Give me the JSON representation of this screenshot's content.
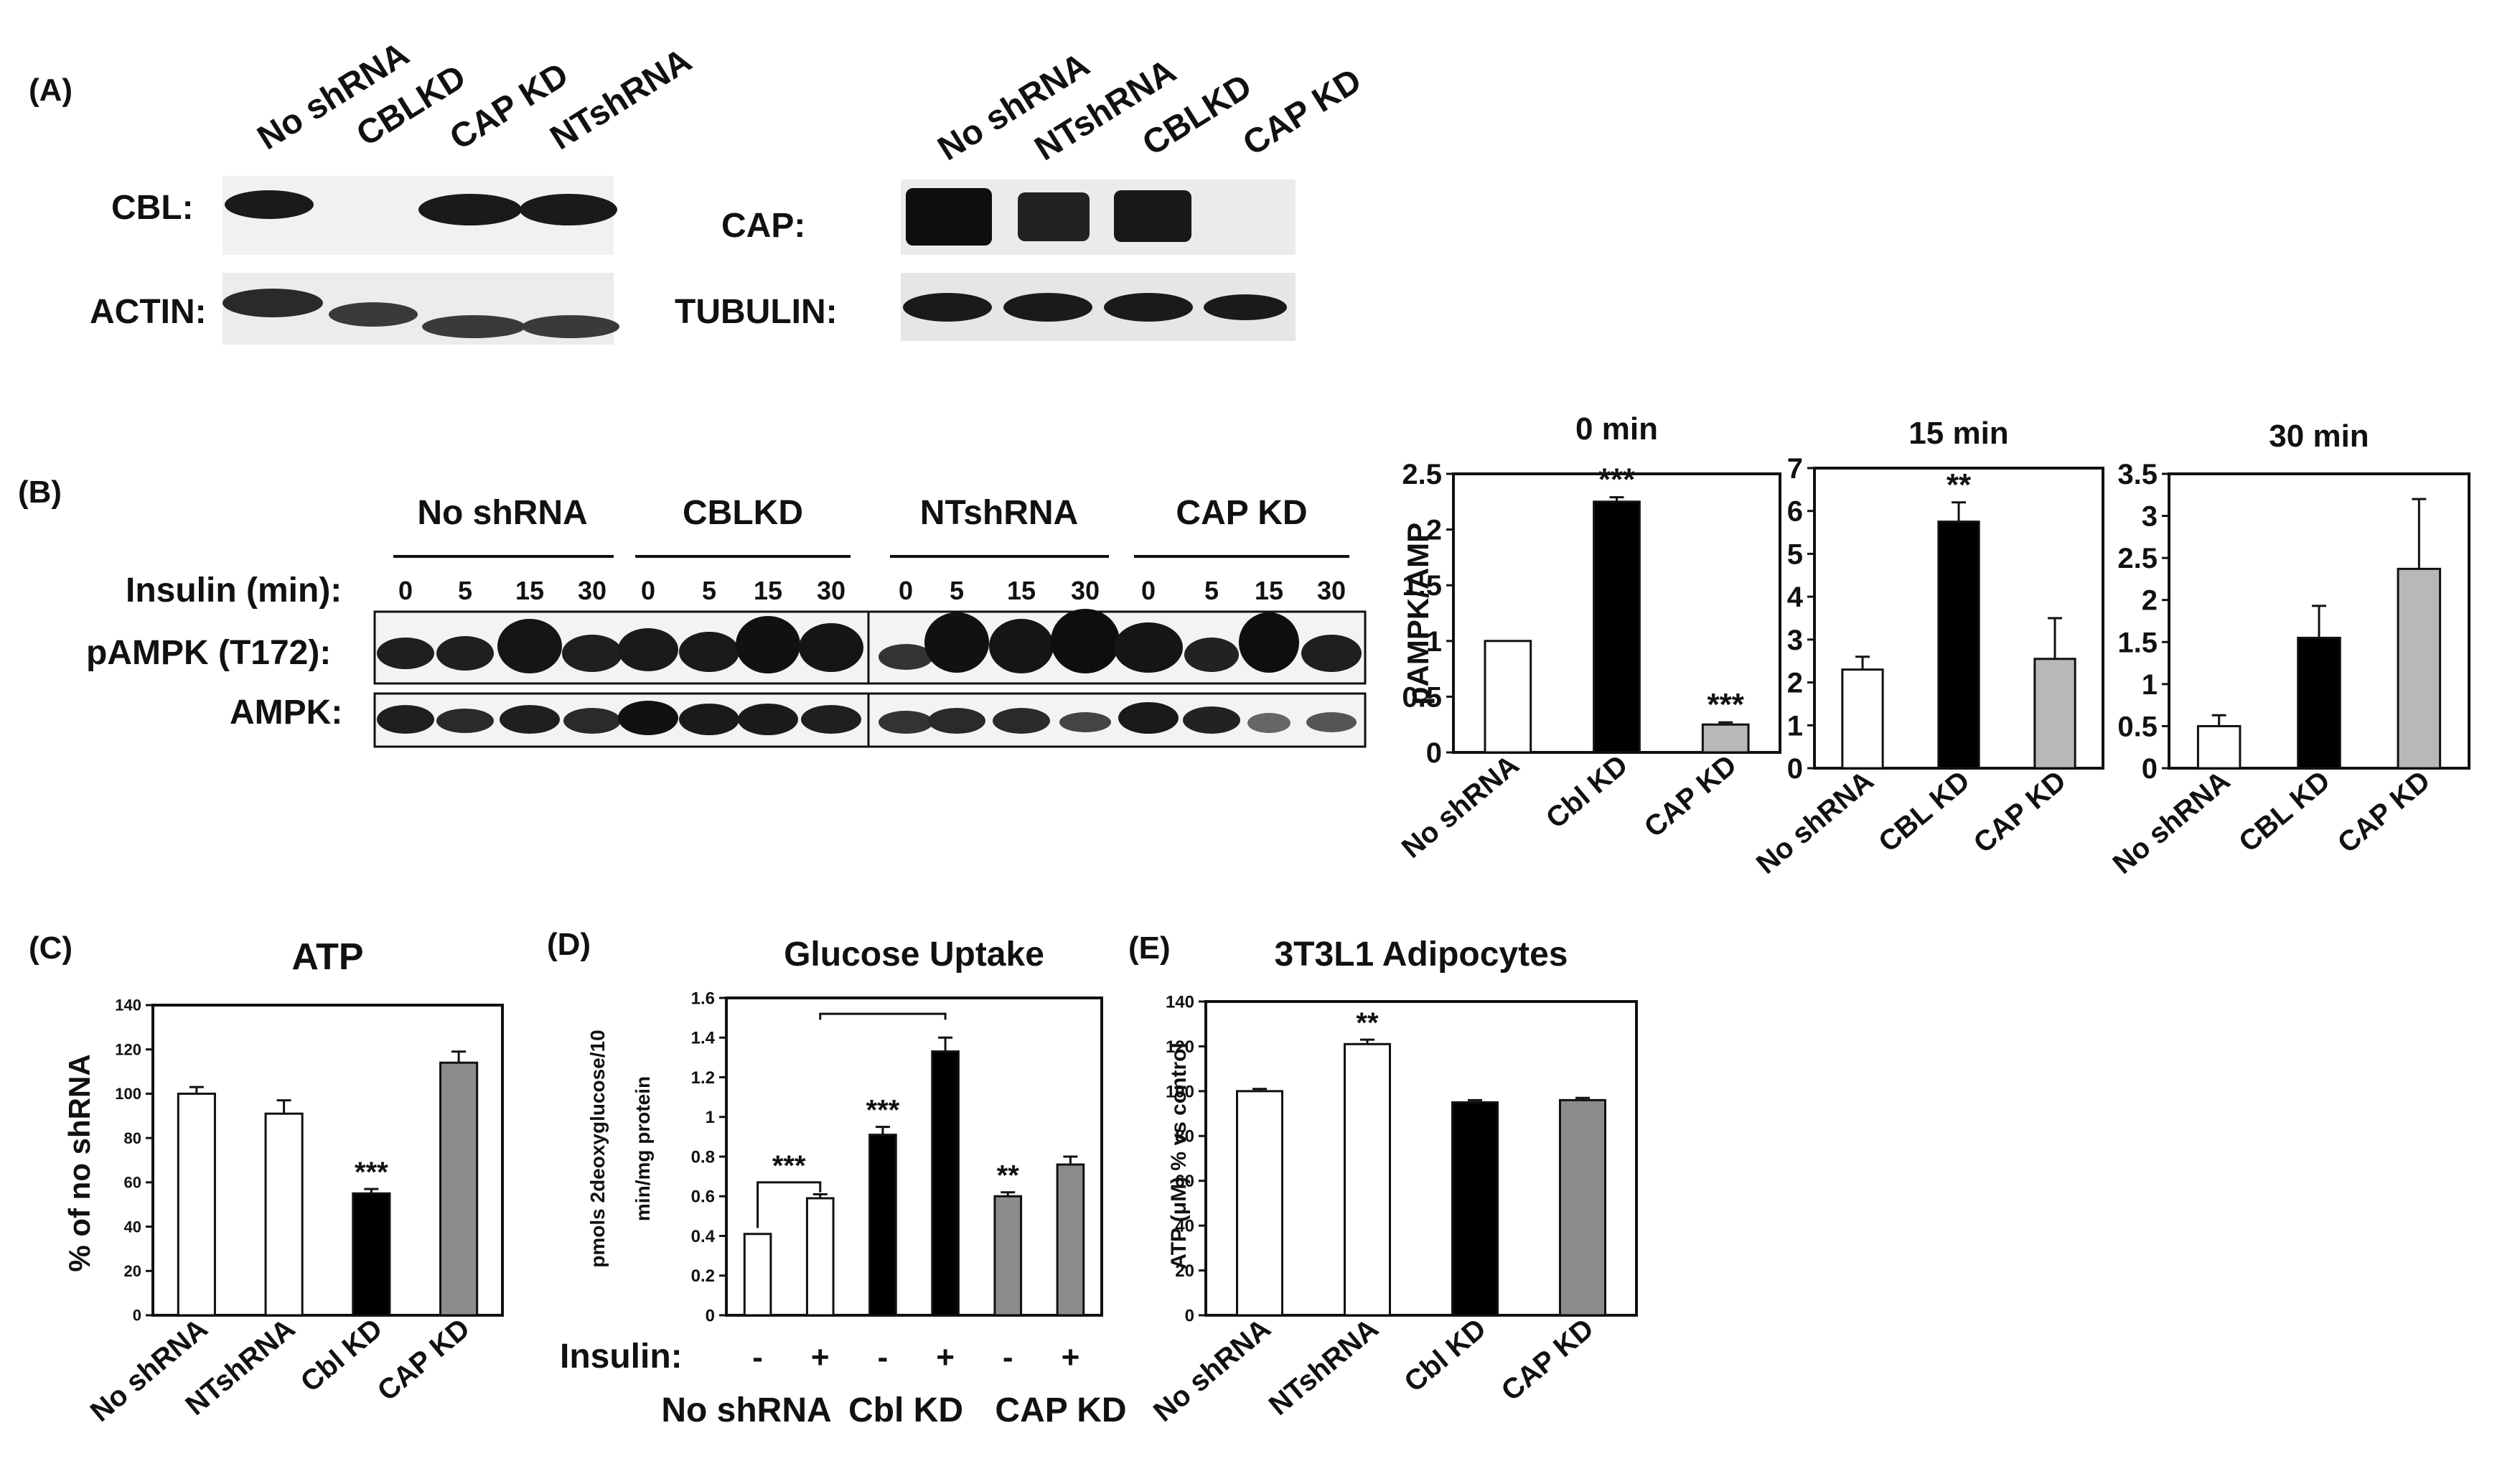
{
  "panelA": {
    "label": "(A)",
    "left": {
      "lanes": [
        "No shRNA",
        "CBLKD",
        "CAP KD",
        "NTshRNA"
      ],
      "row_labels": [
        "CBL:",
        "ACTIN:"
      ]
    },
    "right": {
      "lanes": [
        "No shRNA",
        "NTshRNA",
        "CBLKD",
        "CAP KD"
      ],
      "row_labels": [
        "CAP:",
        "TUBULIN:"
      ]
    }
  },
  "panelB": {
    "label": "(B)",
    "groups": [
      "No shRNA",
      "CBLKD",
      "NTshRNA",
      "CAP KD"
    ],
    "insulin_label": "Insulin (min):",
    "times": [
      "0",
      "5",
      "15",
      "30"
    ],
    "row_labels": [
      "pAMPK (T172):",
      "AMPK:"
    ]
  },
  "panelC_label": "(C)",
  "panelD_label": "(D)",
  "panelD_extra": {
    "insulin_label": "Insulin:",
    "insulin_signs": [
      "-",
      "+",
      "-",
      "+",
      "-",
      "+"
    ],
    "groups": [
      "No shRNA",
      "Cbl KD",
      "CAP KD"
    ]
  },
  "panelE_label": "(E)",
  "chart_data": [
    {
      "type": "bar",
      "title": "0 min",
      "ylabel": "pAMPK/AMP",
      "categories": [
        "No shRNA",
        "Cbl KD",
        "CAP KD"
      ],
      "values": [
        1.0,
        2.25,
        0.25
      ],
      "errors": [
        0,
        0.04,
        0.02
      ],
      "ylim": [
        0,
        2.5
      ],
      "yticks": [
        "0",
        "0.5",
        "1",
        "1.5",
        "2",
        "2.5"
      ],
      "annotations": [
        "",
        "***",
        "***"
      ],
      "colors": [
        "#ffffff",
        "#000000",
        "#b8b8b8"
      ]
    },
    {
      "type": "bar",
      "title": "15 min",
      "ylabel": "",
      "categories": [
        "No shRNA",
        "CBL KD",
        "CAP KD"
      ],
      "values": [
        2.3,
        5.75,
        2.55
      ],
      "errors": [
        0.3,
        0.45,
        0.95
      ],
      "ylim": [
        0,
        7
      ],
      "yticks": [
        "0",
        "1",
        "2",
        "3",
        "4",
        "5",
        "6",
        "7"
      ],
      "annotations": [
        "",
        "**",
        ""
      ],
      "colors": [
        "#ffffff",
        "#000000",
        "#b8b8b8"
      ]
    },
    {
      "type": "bar",
      "title": "30 min",
      "ylabel": "",
      "categories": [
        "No shRNA",
        "CBL KD",
        "CAP KD"
      ],
      "values": [
        0.5,
        1.55,
        2.37
      ],
      "errors": [
        0.13,
        0.38,
        0.83
      ],
      "ylim": [
        0,
        3.5
      ],
      "yticks": [
        "0",
        "0.5",
        "1",
        "1.5",
        "2",
        "2.5",
        "3",
        "3.5"
      ],
      "annotations": [
        "",
        "",
        ""
      ],
      "colors": [
        "#ffffff",
        "#000000",
        "#b8b8b8"
      ]
    },
    {
      "type": "bar",
      "title": "ATP",
      "ylabel": "% of no shRNA",
      "categories": [
        "No shRNA",
        "NTshRNA",
        "Cbl KD",
        "CAP KD"
      ],
      "values": [
        100,
        91,
        55,
        114
      ],
      "errors": [
        3,
        6,
        2,
        5
      ],
      "ylim": [
        0,
        140
      ],
      "yticks": [
        "0",
        "20",
        "40",
        "60",
        "80",
        "100",
        "120",
        "140"
      ],
      "annotations": [
        "",
        "",
        "***",
        ""
      ],
      "colors": [
        "#ffffff",
        "#ffffff",
        "#000000",
        "#8c8c8c"
      ]
    },
    {
      "type": "bar",
      "title": "Glucose Uptake",
      "ylabel_lines": [
        "pmols 2deoxyglucose/10",
        "min/mg protein"
      ],
      "categories": [
        "-",
        "+",
        "-",
        "+",
        "-",
        "+"
      ],
      "values": [
        0.41,
        0.59,
        0.91,
        1.33,
        0.6,
        0.76
      ],
      "errors": [
        0.0,
        0.02,
        0.04,
        0.07,
        0.02,
        0.04
      ],
      "ylim": [
        0,
        1.6
      ],
      "yticks": [
        "0",
        "0.2",
        "0.4",
        "0.6",
        "0.8",
        "1",
        "1.2",
        "1.4",
        "1.6"
      ],
      "annotations": [
        "",
        "",
        "***",
        "",
        "**",
        ""
      ],
      "bracket_label": "***",
      "colors": [
        "#ffffff",
        "#ffffff",
        "#000000",
        "#000000",
        "#8c8c8c",
        "#8c8c8c"
      ]
    },
    {
      "type": "bar",
      "title": "3T3L1 Adipocytes",
      "ylabel": "ATP (μM) % vs control",
      "categories": [
        "No shRNA",
        "NTshRNA",
        "Cbl KD",
        "CAP KD"
      ],
      "values": [
        100,
        121,
        95,
        96
      ],
      "errors": [
        1,
        2,
        1,
        1
      ],
      "ylim": [
        0,
        140
      ],
      "yticks": [
        "0",
        "20",
        "40",
        "60",
        "80",
        "100",
        "120",
        "140"
      ],
      "annotations": [
        "",
        "**",
        "",
        ""
      ],
      "colors": [
        "#ffffff",
        "#ffffff",
        "#000000",
        "#8c8c8c"
      ]
    }
  ]
}
